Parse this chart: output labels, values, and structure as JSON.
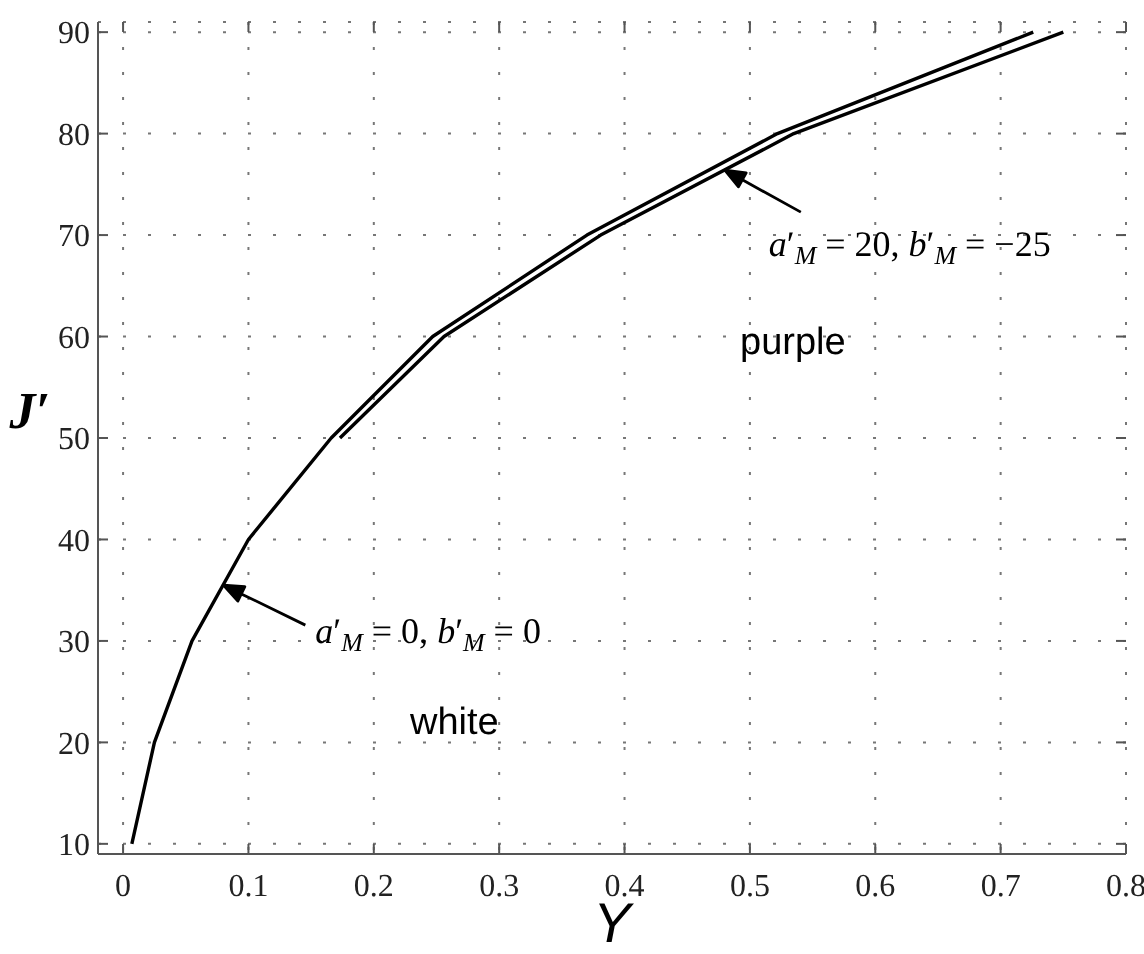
{
  "chart_data": {
    "type": "line",
    "xlabel": "Y",
    "ylabel": "J′",
    "xlim": [
      -0.02,
      0.8
    ],
    "ylim": [
      9,
      91
    ],
    "xticks": [
      0,
      0.1,
      0.2,
      0.3,
      0.4,
      0.5,
      0.6,
      0.7,
      0.8
    ],
    "yticks": [
      10,
      20,
      30,
      40,
      50,
      60,
      70,
      80,
      90
    ],
    "grid": true,
    "series": [
      {
        "color": "#000000",
        "x": [
          0.007,
          0.025,
          0.055,
          0.1,
          0.166,
          0.247,
          0.37,
          0.522,
          0.726
        ],
        "values": [
          10,
          20,
          30,
          40,
          50,
          60,
          70,
          80,
          90
        ]
      },
      {
        "color": "#000000",
        "x": [
          0.173,
          0.256,
          0.381,
          0.535,
          0.75
        ],
        "values": [
          50,
          60,
          70,
          80,
          90
        ]
      }
    ],
    "annotations": [
      {
        "text": "a′$_{M}$ = 0, b′$_{M}$ = 0",
        "x": 0.08,
        "y": 35.5
      },
      {
        "text": "a′$_{M}$ = 20, b′$_{M}$ = −25",
        "x": 0.48,
        "y": 76.4
      },
      "white",
      "purple"
    ]
  }
}
